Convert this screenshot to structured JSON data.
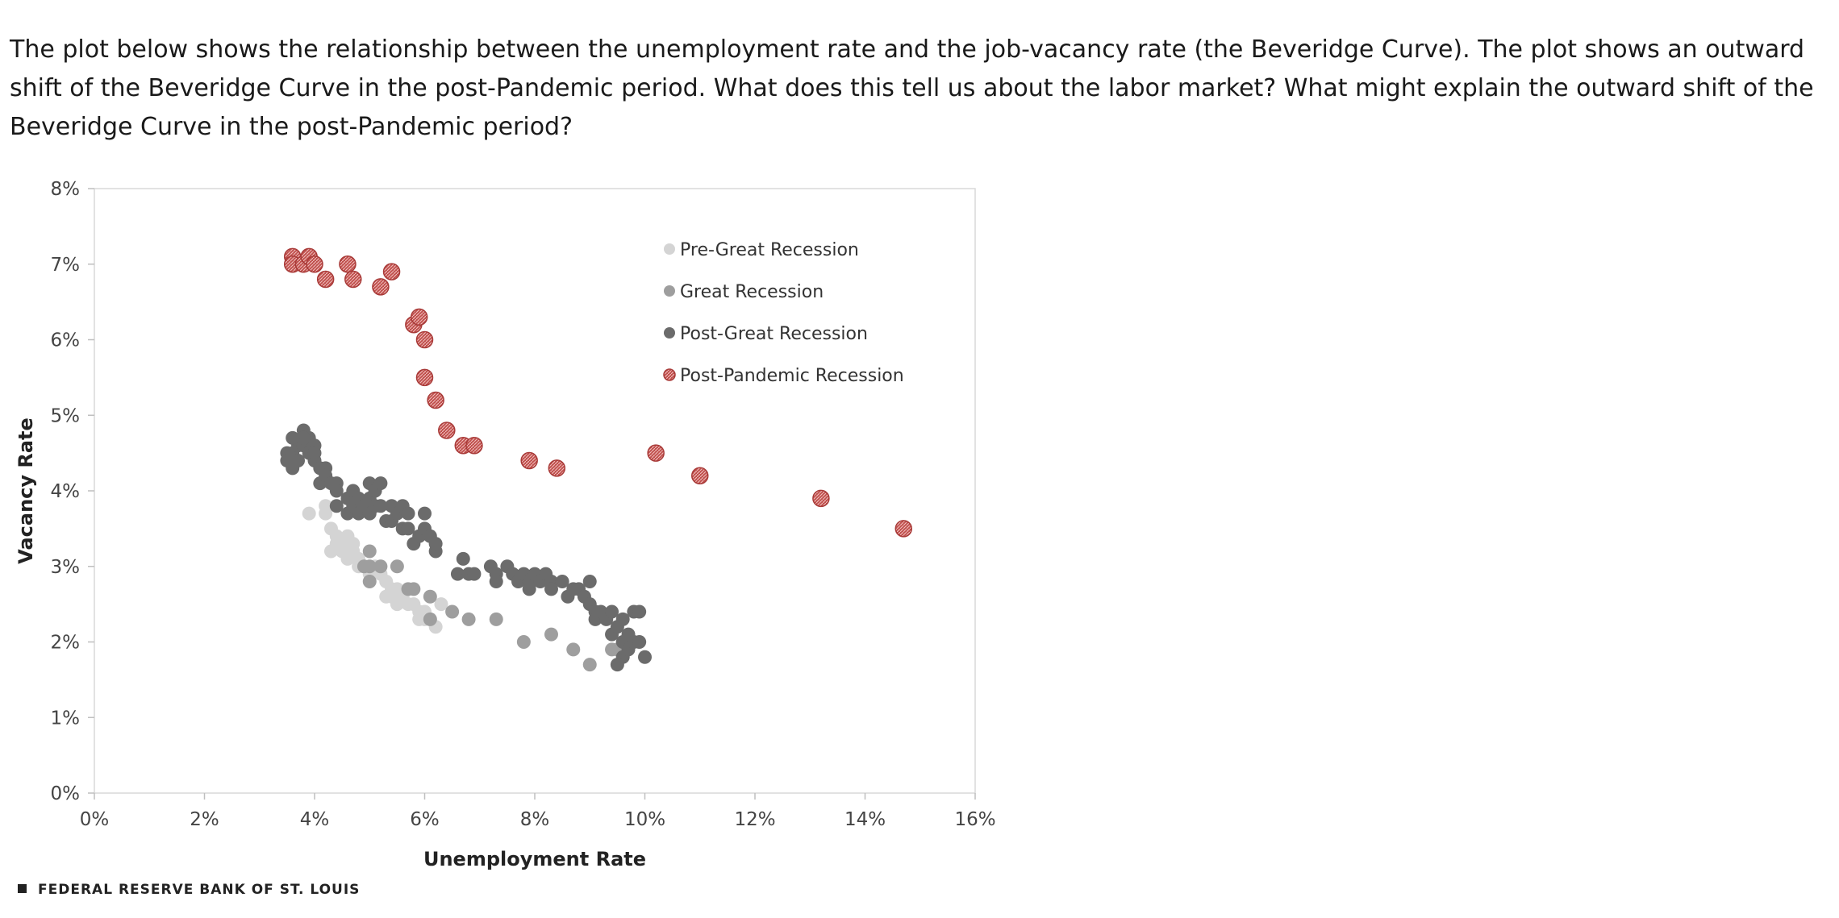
{
  "question": {
    "text": "The plot below shows the relationship between the unemployment rate and the job-vacancy rate (the Beveridge Curve). The plot shows an outward shift of the Beveridge Curve in the post-Pandemic period. What does this tell us about the labor market? What might explain the outward shift of the Beveridge Curve in the post-Pandemic period?"
  },
  "source": "FEDERAL RESERVE BANK OF ST. LOUIS",
  "chart_data": {
    "type": "scatter",
    "title": "",
    "xlabel": "Unemployment Rate",
    "ylabel": "Vacancy Rate",
    "xlim": [
      0,
      16
    ],
    "ylim": [
      0,
      8
    ],
    "xticks": [
      0,
      2,
      4,
      6,
      8,
      10,
      12,
      14,
      16
    ],
    "yticks": [
      0,
      1,
      2,
      3,
      4,
      5,
      6,
      7,
      8
    ],
    "xtick_labels": [
      "0%",
      "2%",
      "4%",
      "6%",
      "8%",
      "10%",
      "12%",
      "14%",
      "16%"
    ],
    "ytick_labels": [
      "0%",
      "1%",
      "2%",
      "3%",
      "4%",
      "5%",
      "6%",
      "7%",
      "8%"
    ],
    "legend_position": "top-right",
    "series": [
      {
        "name": "Pre-Great Recession",
        "color": "#d4d4d4",
        "points": [
          [
            3.9,
            3.7
          ],
          [
            4.2,
            3.7
          ],
          [
            4.2,
            3.8
          ],
          [
            4.3,
            3.5
          ],
          [
            4.4,
            3.4
          ],
          [
            4.3,
            3.2
          ],
          [
            4.5,
            3.3
          ],
          [
            4.6,
            3.4
          ],
          [
            4.7,
            3.3
          ],
          [
            4.5,
            3.2
          ],
          [
            4.6,
            3.1
          ],
          [
            4.7,
            3.2
          ],
          [
            4.8,
            3.1
          ],
          [
            4.9,
            3.0
          ],
          [
            5.0,
            2.9
          ],
          [
            5.1,
            3.0
          ],
          [
            5.2,
            2.9
          ],
          [
            5.3,
            2.8
          ],
          [
            5.4,
            2.7
          ],
          [
            5.4,
            2.6
          ],
          [
            5.5,
            2.7
          ],
          [
            5.6,
            2.6
          ],
          [
            5.7,
            2.5
          ],
          [
            5.5,
            2.5
          ],
          [
            5.8,
            2.5
          ],
          [
            5.9,
            2.4
          ],
          [
            6.0,
            2.3
          ],
          [
            6.0,
            2.4
          ],
          [
            6.1,
            2.3
          ],
          [
            6.2,
            2.2
          ],
          [
            6.3,
            2.5
          ],
          [
            5.9,
            2.3
          ],
          [
            5.3,
            2.6
          ],
          [
            4.4,
            3.3
          ],
          [
            4.8,
            3.0
          ]
        ]
      },
      {
        "name": "Great Recession",
        "color": "#9e9e9e",
        "points": [
          [
            5.0,
            3.2
          ],
          [
            5.2,
            3.0
          ],
          [
            5.0,
            3.0
          ],
          [
            4.9,
            3.0
          ],
          [
            5.0,
            2.8
          ],
          [
            5.5,
            3.0
          ],
          [
            5.7,
            2.7
          ],
          [
            5.8,
            2.7
          ],
          [
            6.1,
            2.6
          ],
          [
            6.1,
            2.3
          ],
          [
            6.5,
            2.4
          ],
          [
            6.8,
            2.3
          ],
          [
            7.3,
            2.3
          ],
          [
            7.8,
            2.0
          ],
          [
            8.3,
            2.1
          ],
          [
            8.7,
            1.9
          ],
          [
            9.0,
            1.7
          ],
          [
            9.4,
            1.9
          ],
          [
            9.5,
            1.9
          ]
        ]
      },
      {
        "name": "Post-Great Recession",
        "color": "#6b6b6b",
        "points": [
          [
            3.5,
            4.4
          ],
          [
            3.5,
            4.5
          ],
          [
            3.6,
            4.5
          ],
          [
            3.6,
            4.3
          ],
          [
            3.7,
            4.4
          ],
          [
            3.7,
            4.6
          ],
          [
            3.8,
            4.8
          ],
          [
            3.8,
            4.6
          ],
          [
            3.9,
            4.7
          ],
          [
            3.9,
            4.5
          ],
          [
            3.8,
            4.7
          ],
          [
            4.0,
            4.6
          ],
          [
            4.0,
            4.4
          ],
          [
            3.6,
            4.7
          ],
          [
            4.0,
            4.5
          ],
          [
            4.1,
            4.3
          ],
          [
            4.2,
            4.3
          ],
          [
            4.1,
            4.1
          ],
          [
            4.2,
            4.2
          ],
          [
            4.3,
            4.1
          ],
          [
            4.4,
            4.1
          ],
          [
            4.4,
            4.0
          ],
          [
            4.4,
            3.8
          ],
          [
            4.6,
            3.9
          ],
          [
            4.6,
            3.7
          ],
          [
            4.7,
            4.0
          ],
          [
            4.7,
            3.8
          ],
          [
            4.8,
            3.9
          ],
          [
            4.8,
            3.7
          ],
          [
            4.9,
            3.8
          ],
          [
            5.0,
            4.1
          ],
          [
            5.0,
            3.9
          ],
          [
            5.0,
            3.7
          ],
          [
            5.1,
            3.8
          ],
          [
            5.1,
            4.0
          ],
          [
            5.2,
            4.1
          ],
          [
            5.2,
            3.8
          ],
          [
            5.3,
            3.6
          ],
          [
            5.4,
            3.6
          ],
          [
            5.4,
            3.8
          ],
          [
            5.5,
            3.7
          ],
          [
            5.6,
            3.8
          ],
          [
            5.6,
            3.5
          ],
          [
            5.7,
            3.7
          ],
          [
            5.7,
            3.5
          ],
          [
            5.8,
            3.3
          ],
          [
            5.9,
            3.4
          ],
          [
            6.0,
            3.5
          ],
          [
            6.0,
            3.7
          ],
          [
            6.1,
            3.4
          ],
          [
            6.2,
            3.2
          ],
          [
            6.2,
            3.3
          ],
          [
            6.6,
            2.9
          ],
          [
            6.7,
            3.1
          ],
          [
            6.8,
            2.9
          ],
          [
            6.9,
            2.9
          ],
          [
            7.2,
            3.0
          ],
          [
            7.3,
            2.9
          ],
          [
            7.3,
            2.8
          ],
          [
            7.5,
            3.0
          ],
          [
            7.6,
            2.9
          ],
          [
            7.7,
            2.8
          ],
          [
            7.8,
            2.9
          ],
          [
            7.9,
            2.7
          ],
          [
            7.9,
            2.8
          ],
          [
            8.0,
            2.9
          ],
          [
            8.1,
            2.8
          ],
          [
            8.2,
            2.9
          ],
          [
            8.3,
            2.8
          ],
          [
            8.3,
            2.7
          ],
          [
            8.5,
            2.8
          ],
          [
            8.6,
            2.6
          ],
          [
            8.7,
            2.7
          ],
          [
            8.8,
            2.7
          ],
          [
            8.9,
            2.6
          ],
          [
            9.0,
            2.8
          ],
          [
            9.0,
            2.5
          ],
          [
            9.1,
            2.4
          ],
          [
            9.1,
            2.3
          ],
          [
            9.2,
            2.4
          ],
          [
            9.3,
            2.3
          ],
          [
            9.4,
            2.4
          ],
          [
            9.4,
            2.1
          ],
          [
            9.5,
            2.2
          ],
          [
            9.6,
            2.0
          ],
          [
            9.6,
            1.8
          ],
          [
            9.7,
            2.1
          ],
          [
            9.7,
            1.9
          ],
          [
            9.8,
            2.4
          ],
          [
            9.9,
            2.4
          ],
          [
            9.8,
            2.0
          ],
          [
            9.9,
            2.0
          ],
          [
            10.0,
            1.8
          ],
          [
            9.5,
            1.7
          ],
          [
            9.6,
            2.3
          ]
        ]
      },
      {
        "name": "Post-Pandemic Recession",
        "color": "#c0504d",
        "points": [
          [
            3.6,
            7.1
          ],
          [
            3.6,
            7.0
          ],
          [
            3.8,
            7.0
          ],
          [
            3.9,
            7.1
          ],
          [
            4.0,
            7.0
          ],
          [
            4.2,
            6.8
          ],
          [
            4.6,
            7.0
          ],
          [
            4.7,
            6.8
          ],
          [
            5.2,
            6.7
          ],
          [
            5.4,
            6.9
          ],
          [
            5.8,
            6.2
          ],
          [
            5.9,
            6.3
          ],
          [
            6.0,
            6.0
          ],
          [
            6.0,
            5.5
          ],
          [
            6.2,
            5.2
          ],
          [
            6.4,
            4.8
          ],
          [
            6.7,
            4.6
          ],
          [
            6.9,
            4.6
          ],
          [
            7.9,
            4.4
          ],
          [
            8.4,
            4.3
          ],
          [
            10.2,
            4.5
          ],
          [
            11.0,
            4.2
          ],
          [
            13.2,
            3.9
          ],
          [
            14.7,
            3.5
          ]
        ]
      }
    ]
  }
}
